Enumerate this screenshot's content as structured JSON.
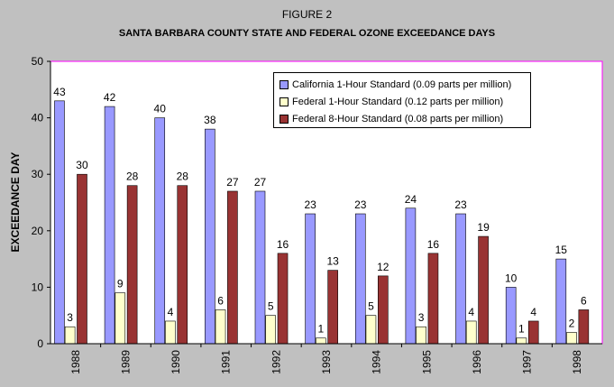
{
  "header": {
    "figure_label": "FIGURE 2",
    "title": "SANTA BARBARA COUNTY STATE AND FEDERAL OZONE EXCEEDANCE DAYS"
  },
  "colors": {
    "background": "#c0c0c0",
    "plot_area": "#ffffff",
    "plot_border": "#ff00ff"
  },
  "chart_data": {
    "type": "bar",
    "title": "SANTA BARBARA COUNTY STATE AND FEDERAL OZONE EXCEEDANCE DAYS",
    "xlabel": "",
    "ylabel": "EXCEEDANCE DAY",
    "ylim": [
      0,
      50
    ],
    "yticks": [
      0,
      10,
      20,
      30,
      40,
      50
    ],
    "grid": false,
    "legend_position": "top-right",
    "categories": [
      "1988",
      "1989",
      "1990",
      "1991",
      "1992",
      "1993",
      "1994",
      "1995",
      "1996",
      "1997",
      "1998"
    ],
    "series": [
      {
        "name": "California 1-Hour Standard (0.09 parts per million)",
        "color": "#9999ff",
        "values": [
          43,
          42,
          40,
          38,
          27,
          23,
          23,
          24,
          23,
          10,
          15
        ]
      },
      {
        "name": "Federal 1-Hour Standard (0.12 parts per million)",
        "color": "#ffffcc",
        "values": [
          3,
          9,
          4,
          6,
          5,
          1,
          5,
          3,
          4,
          1,
          2
        ]
      },
      {
        "name": "Federal 8-Hour Standard (0.08 parts per million)",
        "color": "#993333",
        "values": [
          30,
          28,
          28,
          27,
          16,
          13,
          12,
          16,
          19,
          4,
          6
        ]
      }
    ]
  }
}
